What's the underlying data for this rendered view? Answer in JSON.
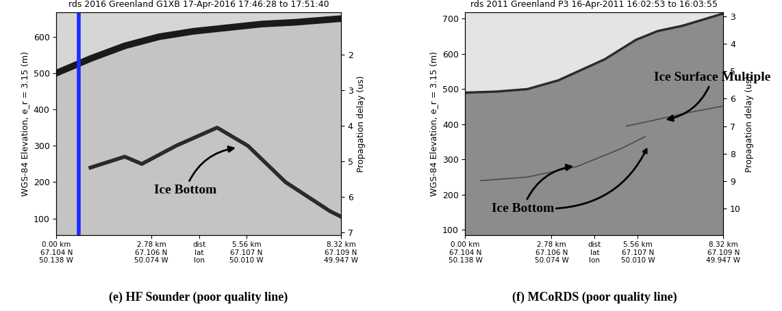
{
  "chart_data": [
    {
      "type": "line",
      "title": "rds 2016 Greenland G1XB 17-Apr-2016 17:46:28 to 17:51:40",
      "caption": "(e) HF Sounder (poor quality line)",
      "ylabel": "WGS-84 Elevation, e_r = 3.15 (m)",
      "y2label": "Propagation delay (us)",
      "xlim": [
        0,
        8.32
      ],
      "xticks": [
        {
          "value": 0,
          "label": "0.00 km\n67.104 N\n50.138 W"
        },
        {
          "value": 2.78,
          "label": "2.78 km\n67.106 N\n50.074 W"
        },
        {
          "value": 4.17,
          "label": "dist\nlat\nlon"
        },
        {
          "value": 5.56,
          "label": "5.56 km\n67.107 N\n50.010 W"
        },
        {
          "value": 8.32,
          "label": "8.32 km\n67.109 N\n49.947 W"
        }
      ],
      "ylim": [
        55,
        667
      ],
      "yticks": [
        100,
        200,
        300,
        400,
        500,
        600
      ],
      "y2lim": [
        7.07,
        0.82
      ],
      "y2ticks": [
        2,
        3,
        4,
        5,
        6,
        7
      ],
      "cursor": {
        "x": 0.66,
        "color": "#1a2cff"
      },
      "series": [
        {
          "color": "#1a1a1a",
          "x": [
            0,
            1.0,
            2.0,
            3.0,
            4.0,
            5.0,
            6.0,
            7.0,
            8.32
          ],
          "values": [
            500,
            540,
            575,
            600,
            615,
            625,
            635,
            640,
            650
          ]
        },
        {
          "color": "#2a2a2a",
          "x": [
            1.0,
            2.0,
            2.5,
            3.5,
            4.7,
            5.6,
            6.7,
            8.0,
            8.32
          ],
          "values": [
            240,
            270,
            250,
            300,
            350,
            300,
            200,
            120,
            105
          ]
        }
      ],
      "annotations": [
        {
          "text": "Ice Bottom",
          "points": [
            [
              5.3,
              295
            ]
          ]
        }
      ]
    },
    {
      "type": "line",
      "title": "rds 2011 Greenland P3 16-Apr-2011 16:02:53 to 16:03:55",
      "caption": "(f) MCoRDS (poor quality line)",
      "ylabel": "WGS-84 Elevation, e_r = 3.15 (m)",
      "y2label": "Propagation delay (us)",
      "xlim": [
        0,
        8.32
      ],
      "xticks": [
        {
          "value": 0,
          "label": "0.00 km\n67.104 N\n50.138 W"
        },
        {
          "value": 2.78,
          "label": "2.78 km\n67.106 N\n50.074 W"
        },
        {
          "value": 4.17,
          "label": "dist\nlat\nlon"
        },
        {
          "value": 5.56,
          "label": "5.56 km\n67.107 N\n50.010 W"
        },
        {
          "value": 8.32,
          "label": "8.32 km\n67.109 N\n49.947 W"
        }
      ],
      "ylim": [
        86,
        718
      ],
      "yticks": [
        100,
        200,
        300,
        400,
        500,
        600,
        700
      ],
      "y2lim": [
        10.95,
        2.86
      ],
      "y2ticks": [
        3,
        4,
        5,
        6,
        7,
        8,
        9,
        10
      ],
      "series": [
        {
          "color": "#2b2b2b",
          "x": [
            0,
            1.0,
            2.0,
            3.0,
            3.5,
            4.5,
            5.5,
            6.2,
            7.0,
            8.32
          ],
          "values": [
            490,
            493,
            500,
            525,
            545,
            585,
            640,
            665,
            680,
            715
          ]
        },
        {
          "color": "#4a4a4a",
          "x": [
            0.5,
            2.0,
            3.6,
            5.0,
            5.8
          ],
          "values": [
            240,
            250,
            280,
            330,
            365
          ]
        },
        {
          "color": "#4a4a4a",
          "x": [
            5.2,
            6.0,
            7.0,
            8.32
          ],
          "values": [
            395,
            410,
            430,
            452
          ]
        }
      ],
      "annotations": [
        {
          "text": "Ice Surface Multiple",
          "points": [
            [
              6.4,
              412
            ]
          ]
        },
        {
          "text": "Ice Bottom",
          "points": [
            [
              3.55,
              282
            ],
            [
              5.9,
              340
            ]
          ]
        }
      ]
    }
  ]
}
